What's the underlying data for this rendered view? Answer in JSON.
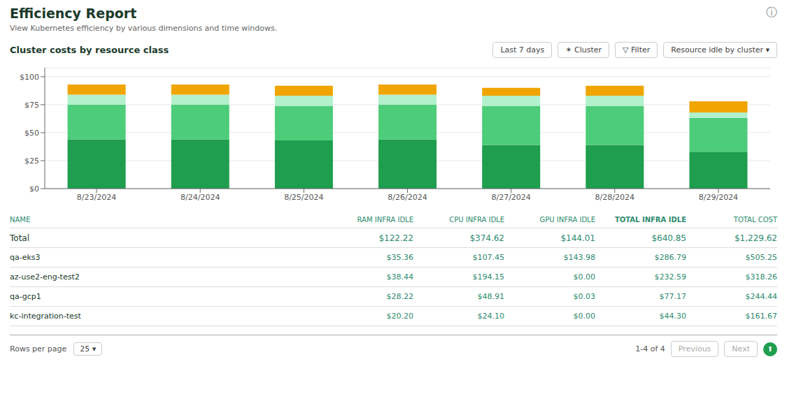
{
  "chart_data": {
    "type": "bar",
    "title": "Efficiency Report",
    "subtitle": "View Kubernetes efficiency by various dimensions and time windows.",
    "annotations": [
      "ⓘ",
      "Cluster costs by resource class",
      "Last 7 days",
      "✶ Cluster",
      "▽ Filter",
      "Resource idle by cluster ▾",
      "Rows per page",
      "25 ▾",
      "1-4 of 4",
      "Previous",
      "Next",
      "⬆"
    ],
    "categories": [
      "8/23/2024",
      "8/24/2024",
      "8/25/2024",
      "8/26/2024",
      "8/27/2024",
      "8/28/2024",
      "8/29/2024"
    ],
    "series": [
      {
        "color": "#1e9e4e",
        "values": [
          44,
          44,
          43,
          44,
          39,
          39,
          33
        ]
      },
      {
        "color": "#4dcc7a",
        "values": [
          31,
          31,
          31,
          31,
          35,
          35,
          30
        ]
      },
      {
        "color": "#b3f0cc",
        "values": [
          9,
          9,
          9,
          9,
          9,
          9,
          5
        ]
      },
      {
        "color": "#f0a500",
        "values": [
          9,
          9,
          9,
          9,
          7,
          9,
          10
        ]
      }
    ],
    "stacked": true,
    "grid": true,
    "ylim": [
      0,
      108
    ],
    "yticks": [
      {
        "value": 0,
        "label": "$0"
      },
      {
        "value": 25,
        "label": "$25"
      },
      {
        "value": 50,
        "label": "$50"
      },
      {
        "value": 75,
        "label": "$75"
      },
      {
        "value": 100,
        "label": "$100"
      }
    ],
    "table": {
      "headers": [
        "NAME",
        "RAM INFRA IDLE",
        "CPU INFRA IDLE",
        "GPU INFRA IDLE",
        "TOTAL INFRA IDLE",
        "TOTAL COST"
      ],
      "rows": [
        [
          "Total",
          "$122.22",
          "$374.62",
          "$144.01",
          "$640.85",
          "$1,229.62"
        ],
        [
          "qa-eks3",
          "$35.36",
          "$107.45",
          "$143.98",
          "$286.79",
          "$505.25"
        ],
        [
          "az-use2-eng-test2",
          "$38.44",
          "$194.15",
          "$0.00",
          "$232.59",
          "$318.26"
        ],
        [
          "qa-gcp1",
          "$28.22",
          "$48.91",
          "$0.03",
          "$77.17",
          "$244.44"
        ],
        [
          "kc-integration-test",
          "$20.20",
          "$24.10",
          "$0.00",
          "$44.30",
          "$161.67"
        ]
      ]
    }
  }
}
